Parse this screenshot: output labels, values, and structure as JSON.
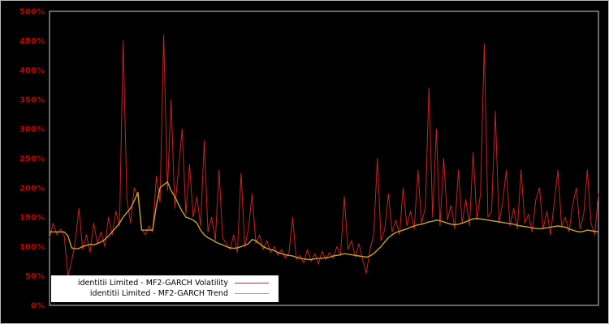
{
  "chart_data": {
    "type": "line",
    "title": "",
    "xlabel": "",
    "ylabel": "",
    "ylim": [
      0,
      500
    ],
    "grid": false,
    "background_color": "#000000",
    "plot_border_color": "#d0d0d0",
    "tick_label_color": "#cc0000",
    "legend_position": "bottom-left-inside",
    "x_axis_labels_visible": false,
    "ytick_values": [
      0,
      50,
      100,
      150,
      200,
      250,
      300,
      350,
      400,
      450,
      500
    ],
    "yticks": [
      "0%",
      "50%",
      "100%",
      "150%",
      "200%",
      "250%",
      "300%",
      "350%",
      "400%",
      "450%",
      "500%"
    ],
    "series": [
      {
        "name": "identitii Limited - MF2-GARCH Volatility",
        "color": "#cc2222",
        "values": [
          115,
          140,
          120,
          130,
          118,
          50,
          75,
          110,
          165,
          95,
          120,
          90,
          140,
          105,
          125,
          100,
          150,
          120,
          160,
          135,
          450,
          180,
          140,
          200,
          185,
          130,
          120,
          135,
          125,
          220,
          175,
          460,
          195,
          350,
          165,
          230,
          300,
          155,
          240,
          150,
          185,
          135,
          280,
          125,
          150,
          110,
          230,
          115,
          105,
          95,
          120,
          90,
          225,
          100,
          130,
          190,
          105,
          120,
          95,
          110,
          90,
          100,
          85,
          95,
          80,
          90,
          150,
          78,
          85,
          72,
          95,
          75,
          88,
          70,
          92,
          78,
          90,
          80,
          100,
          85,
          185,
          95,
          110,
          82,
          105,
          78,
          55,
          95,
          120,
          250,
          110,
          130,
          190,
          125,
          145,
          120,
          200,
          135,
          160,
          130,
          230,
          140,
          165,
          370,
          150,
          300,
          135,
          250,
          145,
          170,
          130,
          230,
          140,
          180,
          135,
          260,
          145,
          190,
          445,
          150,
          160,
          330,
          140,
          175,
          230,
          135,
          165,
          130,
          230,
          140,
          155,
          125,
          180,
          200,
          130,
          160,
          120,
          175,
          230,
          135,
          150,
          125,
          170,
          200,
          130,
          155,
          230,
          140,
          120,
          190
        ]
      },
      {
        "name": "identitii Limited - MF2-GARCH Trend",
        "color": "#c8a228",
        "values": [
          125,
          125,
          125,
          125,
          125,
          118,
          98,
          96,
          97,
          100,
          102,
          104,
          103,
          105,
          108,
          112,
          118,
          125,
          132,
          140,
          150,
          158,
          165,
          178,
          192,
          128,
          128,
          128,
          128,
          170,
          200,
          205,
          210,
          195,
          185,
          172,
          160,
          150,
          148,
          145,
          140,
          128,
          120,
          115,
          112,
          108,
          105,
          103,
          100,
          98,
          97,
          98,
          100,
          102,
          105,
          112,
          110,
          105,
          100,
          97,
          95,
          93,
          90,
          88,
          86,
          85,
          84,
          82,
          80,
          79,
          78,
          78,
          79,
          80,
          80,
          81,
          82,
          84,
          85,
          86,
          88,
          87,
          86,
          85,
          84,
          83,
          82,
          84,
          88,
          94,
          100,
          108,
          115,
          120,
          124,
          126,
          128,
          130,
          133,
          135,
          137,
          138,
          140,
          142,
          143,
          145,
          144,
          142,
          140,
          138,
          137,
          138,
          140,
          142,
          145,
          147,
          148,
          147,
          146,
          145,
          144,
          143,
          142,
          141,
          140,
          139,
          138,
          136,
          135,
          134,
          133,
          132,
          131,
          130,
          131,
          132,
          133,
          134,
          135,
          134,
          133,
          130,
          128,
          126,
          125,
          126,
          128,
          127,
          126,
          125
        ]
      }
    ]
  }
}
